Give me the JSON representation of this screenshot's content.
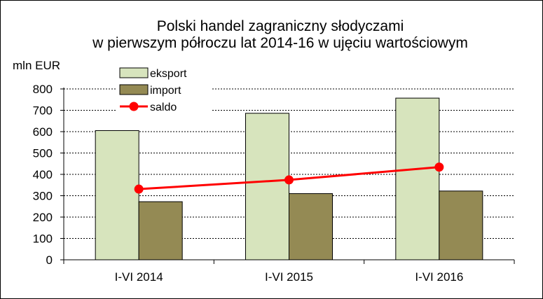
{
  "chart_data": {
    "type": "bar",
    "title": "Polski handel zagraniczny słodyczami",
    "subtitle": "w pierwszym półroczu lat 2014-16 w ujęciu wartościowym",
    "ylabel": "mln EUR",
    "xlabel": "",
    "categories": [
      "I-VI 2014",
      "I-VI 2015",
      "I-VI 2016"
    ],
    "ylim": [
      0,
      800
    ],
    "yticks": [
      0,
      100,
      200,
      300,
      400,
      500,
      600,
      700,
      800
    ],
    "yticklabels": [
      "0",
      "100",
      "200",
      "300",
      "400",
      "500",
      "600",
      "700",
      "800"
    ],
    "grid": true,
    "legend_position": "top-left",
    "series": [
      {
        "name": "eksport",
        "kind": "bar",
        "color": "#d7e4bd",
        "values": [
          605,
          686,
          757
        ]
      },
      {
        "name": "import",
        "kind": "bar",
        "color": "#948a54",
        "values": [
          272,
          310,
          322
        ]
      },
      {
        "name": "saldo",
        "kind": "line",
        "color": "#ff0000",
        "values": [
          331,
          374,
          434
        ]
      }
    ]
  }
}
